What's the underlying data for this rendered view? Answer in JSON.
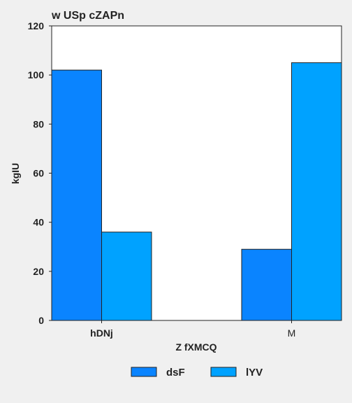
{
  "chart_data": {
    "type": "bar",
    "title": "w USp cZAPn",
    "xlabel": "Z fXMCQ",
    "ylabel": "kgIU",
    "categories": [
      "hDNj",
      "M"
    ],
    "series": [
      {
        "name": "dsF",
        "color": "#0a84ff",
        "values": [
          102,
          29
        ]
      },
      {
        "name": "lYV",
        "color": "#00a2ff",
        "values": [
          36,
          105
        ]
      }
    ],
    "ylim": [
      0,
      120
    ],
    "yticks": [
      0,
      20,
      40,
      60,
      80,
      100,
      120
    ],
    "grid": false,
    "legend": "bottom-center"
  }
}
